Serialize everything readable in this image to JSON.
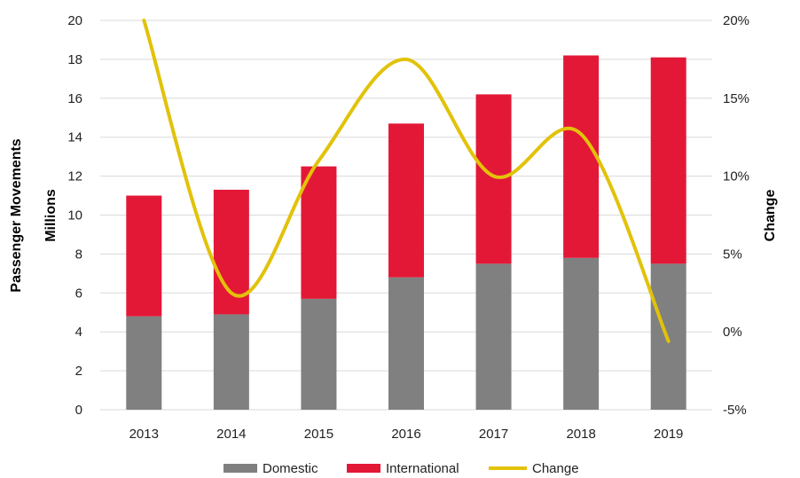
{
  "chart_data": {
    "type": "bar",
    "stacked": true,
    "categories": [
      "2013",
      "2014",
      "2015",
      "2016",
      "2017",
      "2018",
      "2019"
    ],
    "series": [
      {
        "name": "Domestic",
        "type": "bar",
        "axis": "left",
        "color": "#808080",
        "values": [
          4.8,
          4.9,
          5.7,
          6.8,
          7.5,
          7.8,
          7.5
        ]
      },
      {
        "name": "International",
        "type": "bar",
        "axis": "left",
        "color": "#e31837",
        "values": [
          6.2,
          6.4,
          6.8,
          7.9,
          8.7,
          10.4,
          10.6
        ]
      },
      {
        "name": "Change",
        "type": "line",
        "axis": "right",
        "color": "#e2c20a",
        "values": [
          0.2,
          0.025,
          0.11,
          0.175,
          0.1,
          0.127,
          -0.006
        ]
      }
    ],
    "ylabel": "Passenger Movements",
    "ylabel2": "Millions",
    "ylim": [
      0,
      20
    ],
    "yticks": [
      "0",
      "2",
      "4",
      "6",
      "8",
      "10",
      "12",
      "14",
      "16",
      "18",
      "20"
    ],
    "y2label": "Change",
    "y2lim": [
      -0.05,
      0.2
    ],
    "y2ticks": [
      "-5%",
      "0%",
      "5%",
      "10%",
      "15%",
      "20%"
    ],
    "grid": true,
    "legend_position": "bottom"
  }
}
